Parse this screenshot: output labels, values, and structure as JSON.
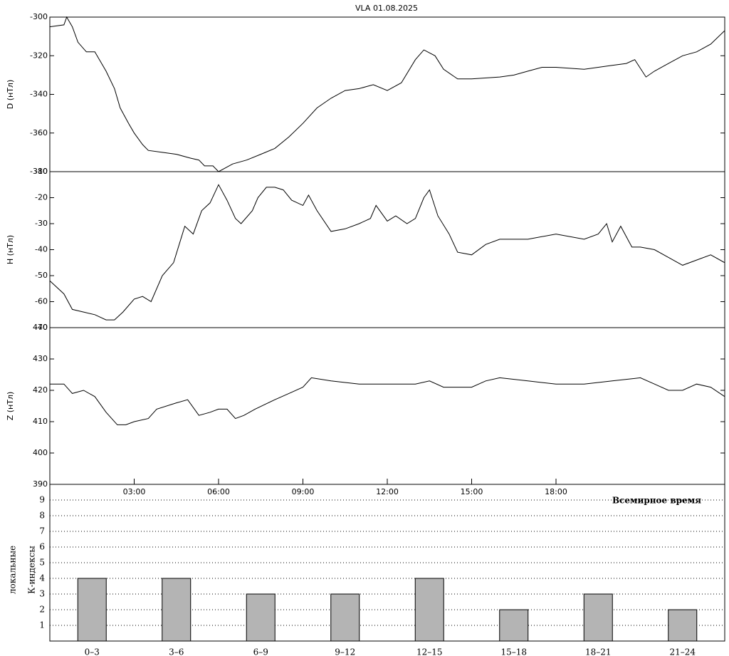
{
  "title": "VLA   01.08.2025",
  "chart_data": [
    {
      "type": "line",
      "ylabel": "D (нТл)",
      "xlim": [
        0,
        24
      ],
      "ylim": [
        -380,
        -300
      ],
      "yticks": [
        -300,
        -320,
        -340,
        -360,
        -380
      ],
      "x": [
        0,
        0.5,
        0.6,
        0.8,
        1.0,
        1.3,
        1.6,
        2.0,
        2.3,
        2.5,
        2.8,
        3.0,
        3.3,
        3.5,
        4.0,
        4.5,
        5.0,
        5.3,
        5.5,
        5.8,
        6.0,
        6.5,
        7.0,
        7.5,
        8.0,
        8.5,
        9.0,
        9.5,
        10.0,
        10.5,
        11.0,
        11.5,
        12.0,
        12.5,
        13.0,
        13.3,
        13.7,
        14.0,
        14.5,
        15.0,
        16.0,
        16.5,
        17.0,
        17.5,
        18.0,
        19.0,
        19.5,
        20.0,
        20.5,
        20.8,
        21.2,
        21.5,
        22.0,
        22.5,
        23.0,
        23.5,
        24.0
      ],
      "series": [
        {
          "color": "#000000",
          "values": [
            -305,
            -304,
            -300,
            -305,
            -313,
            -318,
            -318,
            -328,
            -337,
            -347,
            -355,
            -360,
            -366,
            -369,
            -370,
            -371,
            -373,
            -374,
            -377,
            -377,
            -380,
            -376,
            -374,
            -371,
            -368,
            -362,
            -355,
            -347,
            -342,
            -338,
            -337,
            -335,
            -338,
            -334,
            -322,
            -317,
            -320,
            -327,
            -332,
            -332,
            -331,
            -330,
            -328,
            -326,
            -326,
            -327,
            -326,
            -325,
            -324,
            -322,
            -331,
            -328,
            -324,
            -320,
            -318,
            -314,
            -307
          ]
        }
      ]
    },
    {
      "type": "line",
      "ylabel": "H (нТл)",
      "xlim": [
        0,
        24
      ],
      "ylim": [
        -70,
        -10
      ],
      "yticks": [
        -70,
        -60,
        -50,
        -40,
        -30,
        -20,
        -10
      ],
      "x": [
        0,
        0.5,
        0.8,
        1.2,
        1.6,
        2.0,
        2.3,
        2.6,
        3.0,
        3.3,
        3.6,
        4.0,
        4.4,
        4.8,
        5.1,
        5.4,
        5.7,
        6.0,
        6.3,
        6.6,
        6.8,
        7.2,
        7.4,
        7.7,
        8.0,
        8.3,
        8.6,
        9.0,
        9.2,
        9.5,
        10.0,
        10.5,
        11.0,
        11.4,
        11.6,
        12.0,
        12.3,
        12.7,
        13.0,
        13.3,
        13.5,
        13.8,
        14.2,
        14.5,
        15.0,
        15.5,
        16.0,
        17.0,
        18.0,
        19.0,
        19.5,
        19.8,
        20.0,
        20.3,
        20.7,
        21.0,
        21.5,
        22.0,
        22.5,
        23.0,
        23.5,
        24.0
      ],
      "series": [
        {
          "color": "#000000",
          "values": [
            -52,
            -57,
            -63,
            -64,
            -65,
            -67,
            -67,
            -64,
            -59,
            -58,
            -60,
            -50,
            -45,
            -31,
            -34,
            -25,
            -22,
            -15,
            -21,
            -28,
            -30,
            -25,
            -20,
            -16,
            -16,
            -17,
            -21,
            -23,
            -19,
            -25,
            -33,
            -32,
            -30,
            -28,
            -23,
            -29,
            -27,
            -30,
            -28,
            -20,
            -17,
            -27,
            -34,
            -41,
            -42,
            -38,
            -36,
            -36,
            -34,
            -36,
            -34,
            -30,
            -37,
            -31,
            -39,
            -39,
            -40,
            -43,
            -46,
            -44,
            -42,
            -45
          ]
        }
      ]
    },
    {
      "type": "line",
      "ylabel": "Z (нТл)",
      "xlim": [
        0,
        24
      ],
      "ylim": [
        390,
        440
      ],
      "yticks": [
        390,
        400,
        410,
        420,
        430,
        440
      ],
      "xticks": [
        {
          "value": 3,
          "label": "03:00"
        },
        {
          "value": 6,
          "label": "06:00"
        },
        {
          "value": 9,
          "label": "09:00"
        },
        {
          "value": 12,
          "label": "12:00"
        },
        {
          "value": 15,
          "label": "15:00"
        },
        {
          "value": 18,
          "label": "18:00"
        }
      ],
      "xlabel": "Всемирное время",
      "x": [
        0,
        0.5,
        0.8,
        1.2,
        1.6,
        2.0,
        2.4,
        2.7,
        3.0,
        3.5,
        3.8,
        4.5,
        4.9,
        5.3,
        5.7,
        6.0,
        6.3,
        6.6,
        6.9,
        7.3,
        8.0,
        8.5,
        9.0,
        9.3,
        10.0,
        11.0,
        12.0,
        12.5,
        13.0,
        13.5,
        14.0,
        15.0,
        15.5,
        16.0,
        17.0,
        18.0,
        19.0,
        20.0,
        21.0,
        21.5,
        22.0,
        22.5,
        23.0,
        23.5,
        24.0
      ],
      "series": [
        {
          "color": "#000000",
          "values": [
            422,
            422,
            419,
            420,
            418,
            413,
            409,
            409,
            410,
            411,
            414,
            416,
            417,
            412,
            413,
            414,
            414,
            411,
            412,
            414,
            417,
            419,
            421,
            424,
            423,
            422,
            422,
            422,
            422,
            423,
            421,
            421,
            423,
            424,
            423,
            422,
            422,
            423,
            424,
            422,
            420,
            420,
            422,
            421,
            418
          ]
        }
      ]
    },
    {
      "type": "bar",
      "ylabel": [
        "локальные",
        "К-индексы"
      ],
      "ylim": [
        0,
        10
      ],
      "yticks": [
        1,
        2,
        3,
        4,
        5,
        6,
        7,
        8,
        9
      ],
      "grid": true,
      "color": "#b4b4b4",
      "categories": [
        "0–3",
        "3–6",
        "6–9",
        "9–12",
        "12–15",
        "15–18",
        "18–21",
        "21–24"
      ],
      "values": [
        4,
        4,
        3,
        3,
        4,
        2,
        3,
        2
      ]
    }
  ]
}
